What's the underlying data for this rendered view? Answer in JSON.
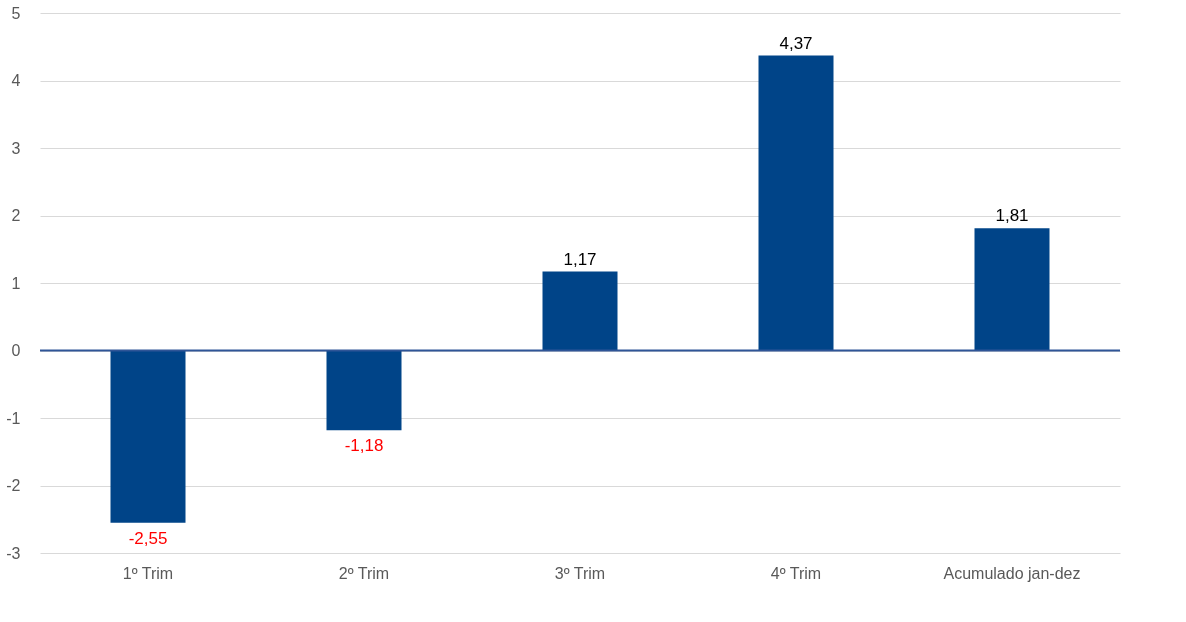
{
  "chart_data": {
    "type": "bar",
    "categories": [
      "1º Trim",
      "2º Trim",
      "3º Trim",
      "4º Trim",
      "Acumulado jan-dez"
    ],
    "values": [
      -2.55,
      -1.18,
      1.17,
      4.37,
      1.81
    ],
    "value_labels": [
      "-2,55",
      "-1,18",
      "1,17",
      "4,37",
      "1,81"
    ],
    "color": "#004488",
    "ylim": [
      -3,
      5
    ],
    "yticks": [
      -3,
      -2,
      -1,
      0,
      1,
      2,
      3,
      4,
      5
    ],
    "grid": "y",
    "ref_lines": [
      {
        "axis": "y",
        "value": 0,
        "label": null,
        "color": "#2f5597"
      }
    ]
  }
}
